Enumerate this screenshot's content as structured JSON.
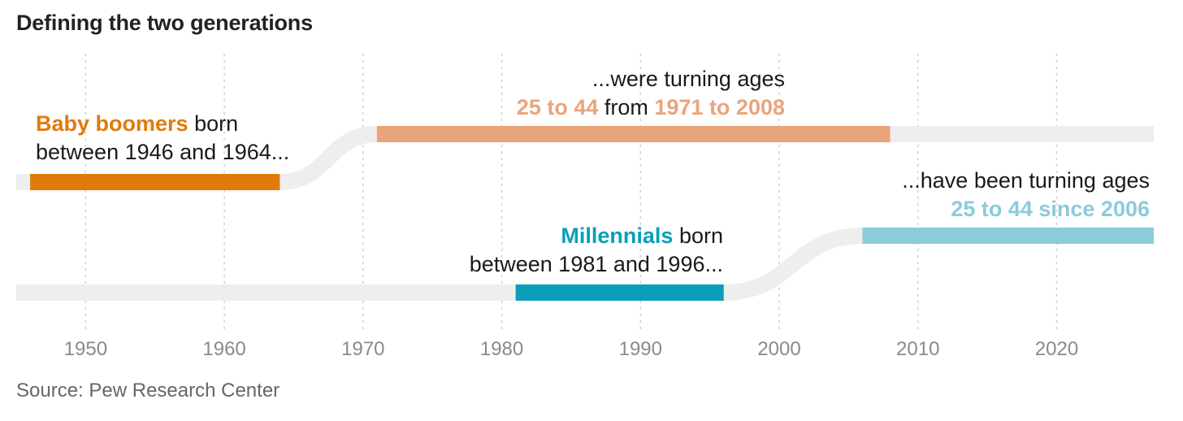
{
  "title": "Defining the two generations",
  "source": "Source: Pew Research Center",
  "colors": {
    "boomer_dark": "#e07b0b",
    "boomer_light": "#eaa47b",
    "millennial_dark": "#0a9fb9",
    "millennial_light": "#8ccbda",
    "track": "#eeeeef",
    "grid": "#d0d0d0",
    "tick": "#8a8a8a"
  },
  "annotations": {
    "boomers_born": {
      "name": "Baby boomers",
      "text1": " born",
      "text2": "between 1946 and 1964..."
    },
    "boomers_turning": {
      "line1": "...were turning ages",
      "hl1": "25 to 44",
      "mid": " from ",
      "hl2": "1971 to 2008"
    },
    "millennials_born": {
      "name": "Millennials",
      "text1": " born",
      "text2": "between 1981 and 1996..."
    },
    "millennials_turning": {
      "line1": "...have been turning ages",
      "hl1": "25 to 44 since 2006"
    }
  },
  "chart_data": {
    "type": "timeline",
    "xlim": [
      1945,
      2027
    ],
    "x_ticks": [
      1950,
      1960,
      1970,
      1980,
      1990,
      2000,
      2010,
      2020
    ],
    "series": [
      {
        "name": "Baby boomers",
        "born": [
          1946,
          1964
        ],
        "ages_25_to_44": [
          1971,
          2008
        ]
      },
      {
        "name": "Millennials",
        "born": [
          1981,
          1996
        ],
        "ages_25_to_44": [
          2006,
          2027
        ]
      }
    ]
  }
}
